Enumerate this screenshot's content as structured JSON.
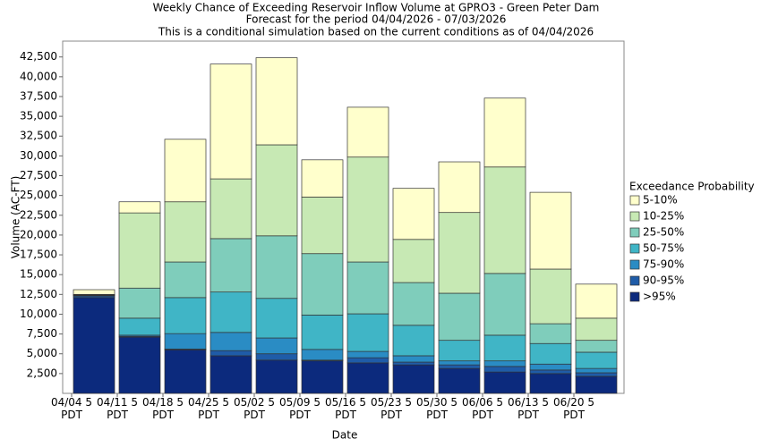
{
  "chart_data": {
    "type": "stacked_bar",
    "title": [
      "Weekly Chance of Exceeding Reservoir Inflow Volume at GPRO3 - Green Peter Dam",
      "Forecast for the period 04/04/2026 - 07/03/2026",
      "This is a conditional simulation based on the current conditions as of 04/04/2026"
    ],
    "xlabel": "Date",
    "ylabel": "Volume (AC-FT)",
    "legend_title": "Exceedance Probability",
    "categories": [
      "04/04 5 PDT",
      "04/11 5 PDT",
      "04/18 5 PDT",
      "04/25 5 PDT",
      "05/02 5 PDT",
      "05/09 5 PDT",
      "05/16 5 PDT",
      "05/23 5 PDT",
      "05/30 5 PDT",
      "06/06 5 PDT",
      "06/13 5 PDT",
      "06/20 5 PDT"
    ],
    "series": [
      {
        "name": ">95%",
        "color": "#0c2a7d",
        "values": [
          12100,
          7100,
          5500,
          4750,
          4200,
          4100,
          3850,
          3600,
          3150,
          2700,
          2500,
          2150
        ]
      },
      {
        "name": "90-95%",
        "color": "#1f5ca8",
        "values": [
          200,
          100,
          100,
          650,
          800,
          100,
          650,
          350,
          450,
          700,
          450,
          450
        ]
      },
      {
        "name": "75-90%",
        "color": "#2a8cc4",
        "values": [
          50,
          150,
          1950,
          2300,
          2000,
          1350,
          800,
          800,
          500,
          700,
          750,
          550
        ]
      },
      {
        "name": "50-75%",
        "color": "#40b5c6",
        "values": [
          50,
          2150,
          4550,
          5100,
          5000,
          4350,
          4750,
          3850,
          2600,
          3250,
          2600,
          2050
        ]
      },
      {
        "name": "25-50%",
        "color": "#7fcdbb",
        "values": [
          50,
          3800,
          4500,
          6750,
          7900,
          7750,
          6550,
          5400,
          5950,
          7800,
          2500,
          1500
        ]
      },
      {
        "name": "10-25%",
        "color": "#c7e9b4",
        "values": [
          50,
          9500,
          7600,
          7550,
          11500,
          7150,
          13250,
          5450,
          10200,
          13450,
          6900,
          2800
        ]
      },
      {
        "name": "5-10%",
        "color": "#ffffcc",
        "values": [
          600,
          1400,
          7900,
          14500,
          11000,
          4700,
          6300,
          6450,
          6400,
          8700,
          9700,
          4300
        ]
      }
    ],
    "ylim": [
      0,
      44500
    ],
    "yticks": [
      {
        "value": 2500,
        "label": "2,500"
      },
      {
        "value": 5000,
        "label": "5,000"
      },
      {
        "value": 7500,
        "label": "7,500"
      },
      {
        "value": 10000,
        "label": "10,000"
      },
      {
        "value": 12500,
        "label": "12,500"
      },
      {
        "value": 15000,
        "label": "15,000"
      },
      {
        "value": 17500,
        "label": "17,500"
      },
      {
        "value": 20000,
        "label": "20,000"
      },
      {
        "value": 22500,
        "label": "22,500"
      },
      {
        "value": 25000,
        "label": "25,000"
      },
      {
        "value": 27500,
        "label": "27,500"
      },
      {
        "value": 30000,
        "label": "30,000"
      },
      {
        "value": 32500,
        "label": "32,500"
      },
      {
        "value": 35000,
        "label": "35,000"
      },
      {
        "value": 37500,
        "label": "37,500"
      },
      {
        "value": 40000,
        "label": "40,000"
      },
      {
        "value": 42500,
        "label": "42,500"
      }
    ],
    "grid": false,
    "legend": "right"
  }
}
